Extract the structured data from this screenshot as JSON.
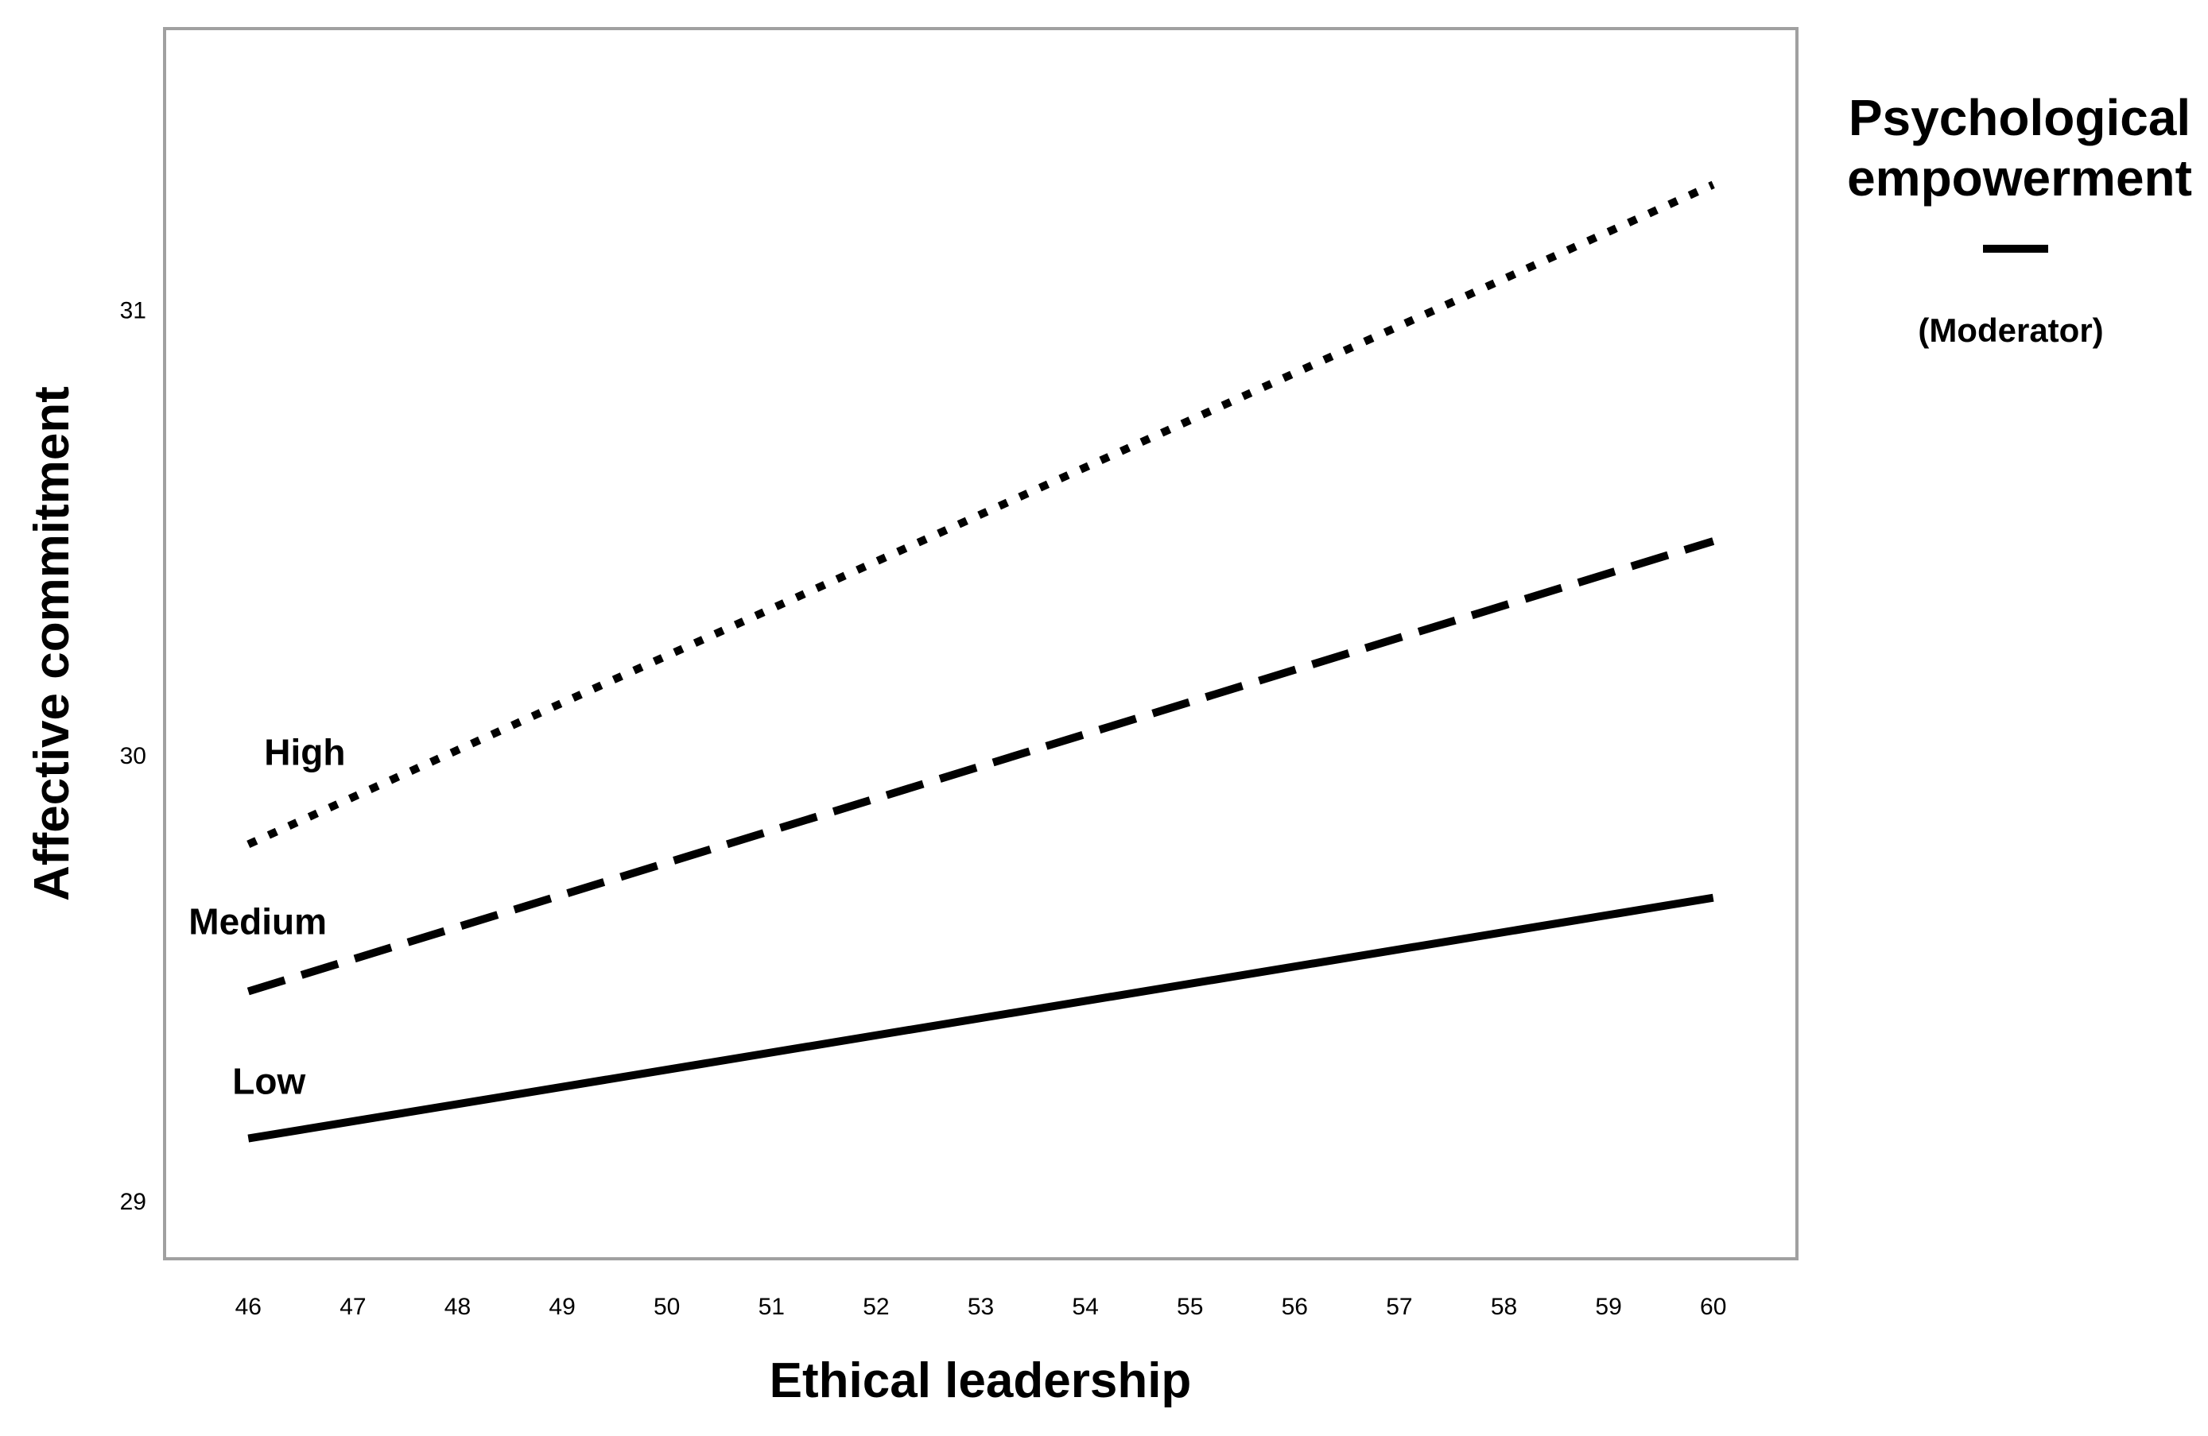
{
  "chart_data": {
    "type": "line",
    "title": "",
    "xlabel": "Ethical leadership",
    "ylabel": "Affective commitment",
    "x": [
      46,
      47,
      48,
      49,
      50,
      51,
      52,
      53,
      54,
      55,
      56,
      57,
      58,
      59,
      60
    ],
    "x_ticks": [
      "46",
      "47",
      "48",
      "49",
      "50",
      "51",
      "52",
      "53",
      "54",
      "55",
      "56",
      "57",
      "58",
      "59",
      "60"
    ],
    "y_ticks": [
      "29",
      "30",
      "31"
    ],
    "xlim": [
      45.2,
      60.8
    ],
    "ylim": [
      28.87,
      31.63
    ],
    "grid": false,
    "legend": {
      "title_line1": "Psychological",
      "title_line2": "empowerment",
      "note": "(Moderator)",
      "placement": "right"
    },
    "series": [
      {
        "name": "High",
        "style": "dotted",
        "color": "#000000",
        "x": [
          46,
          60
        ],
        "values": [
          29.8,
          31.28
        ]
      },
      {
        "name": "Medium",
        "style": "dashed",
        "color": "#000000",
        "x": [
          46,
          60
        ],
        "values": [
          29.47,
          30.48
        ]
      },
      {
        "name": "Low",
        "style": "solid",
        "color": "#000000",
        "x": [
          46,
          60
        ],
        "values": [
          29.14,
          29.68
        ]
      }
    ]
  },
  "colors": {
    "frame": "#a0a0a0",
    "ink": "#000000",
    "background": "#ffffff"
  }
}
